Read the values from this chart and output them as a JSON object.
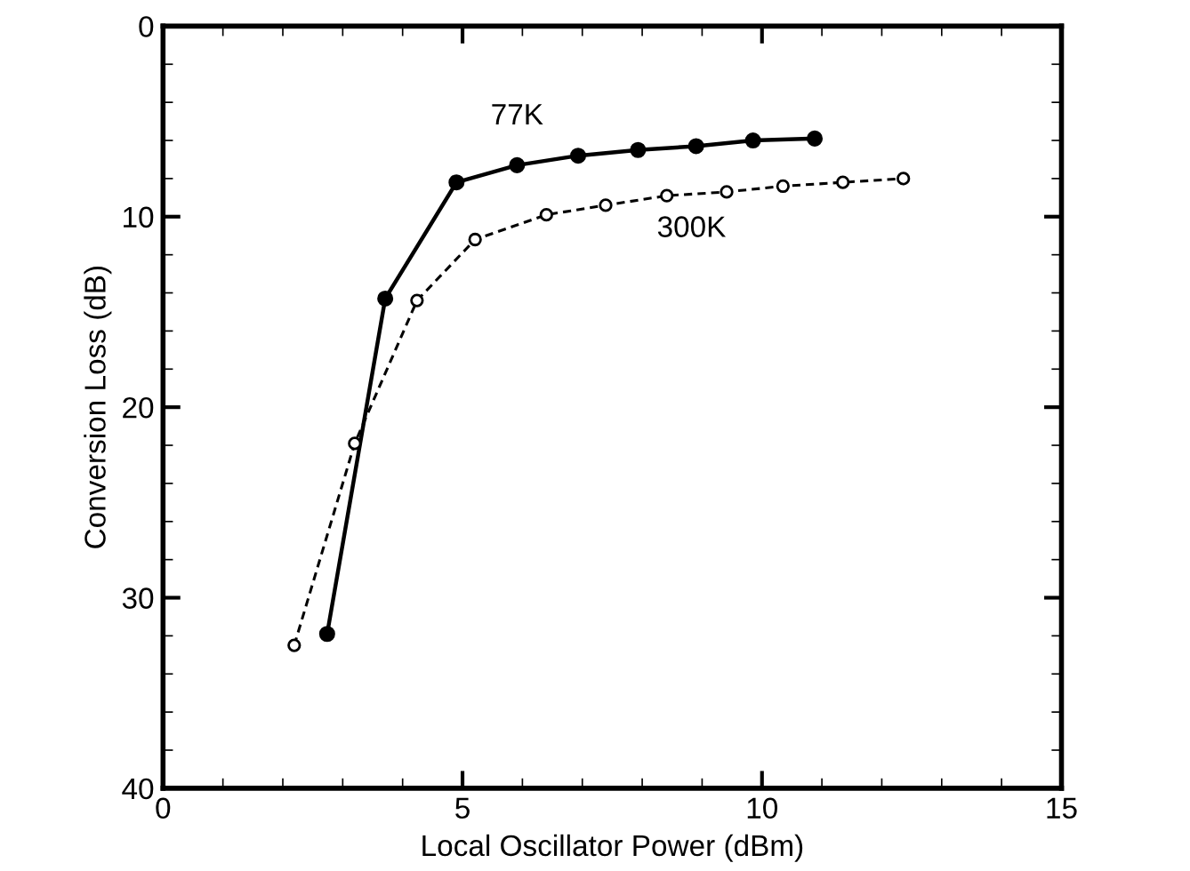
{
  "chart_data": {
    "type": "line",
    "xlabel": "Local Oscillator Power (dBm)",
    "ylabel": "Conversion Loss (dB)",
    "xlim": [
      0,
      15
    ],
    "xticks": [
      0,
      5,
      10,
      15
    ],
    "ylim": [
      40,
      0
    ],
    "yticks": [
      0,
      10,
      20,
      30,
      40
    ],
    "grid": false,
    "legend": false,
    "series": [
      {
        "name": "77K",
        "color": "#000000",
        "marker": "circle",
        "line_style": "solid",
        "x": [
          2.74,
          3.71,
          4.9,
          5.91,
          6.93,
          7.93,
          8.9,
          9.85,
          10.88
        ],
        "values": [
          31.9,
          14.3,
          8.2,
          7.3,
          6.8,
          6.5,
          6.3,
          6.0,
          5.9
        ]
      },
      {
        "name": "300K",
        "color": "#000000",
        "marker": "circle",
        "line_style": "dashed",
        "x": [
          2.19,
          3.2,
          4.24,
          5.21,
          6.4,
          7.39,
          8.41,
          9.41,
          10.35,
          11.35,
          12.36
        ],
        "values": [
          32.5,
          21.9,
          14.4,
          11.2,
          9.9,
          9.4,
          8.9,
          8.7,
          8.4,
          8.2,
          8.0
        ]
      }
    ]
  }
}
